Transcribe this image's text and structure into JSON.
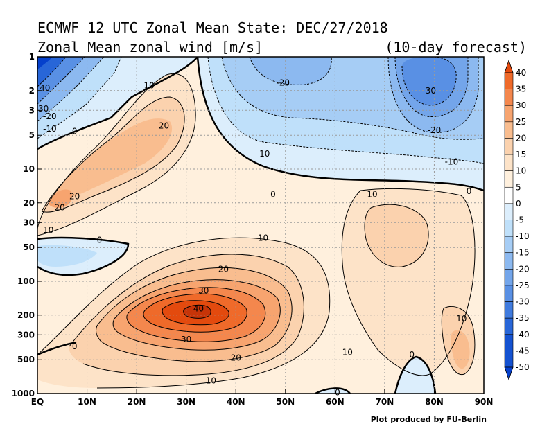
{
  "header": {
    "title": "ECMWF 12 UTC Zonal Mean State: DEC/27/2018",
    "subtitle": "Zonal Mean zonal wind [m/s]",
    "forecast": "(10-day forecast)"
  },
  "credit": "Plot produced by FU-Berlin",
  "chart_data": {
    "type": "heatmap",
    "title": "ECMWF 12 UTC Zonal Mean State: DEC/27/2018",
    "variable": "Zonal Mean zonal wind",
    "unit": "m/s",
    "x_tick_labels": [
      "EQ",
      "10N",
      "20N",
      "30N",
      "40N",
      "50N",
      "60N",
      "70N",
      "80N",
      "90N"
    ],
    "x_range": [
      0,
      90
    ],
    "y_tick_labels": [
      "1",
      "2",
      "3",
      "5",
      "10",
      "20",
      "30",
      "50",
      "100",
      "200",
      "300",
      "500",
      "1000"
    ],
    "y_tick_values": [
      1,
      2,
      3,
      5,
      10,
      20,
      30,
      50,
      100,
      200,
      300,
      500,
      1000
    ],
    "y_range": [
      1,
      1000
    ],
    "y_scale": "log",
    "y_inverted": true,
    "grid": true,
    "colorbar": {
      "placement": "right",
      "labels": [
        "40",
        "35",
        "30",
        "25",
        "20",
        "15",
        "10",
        "5",
        "0",
        "-5",
        "-10",
        "-15",
        "-20",
        "-25",
        "-30",
        "-35",
        "-40",
        "-45",
        "-50"
      ],
      "colors": [
        "#e34a0e",
        "#ef6a2a",
        "#f4874d",
        "#f7a46f",
        "#f9bd8f",
        "#fbd2ae",
        "#fde3c8",
        "#fff0dd",
        "#ffffff",
        "#dceefc",
        "#bfe0fa",
        "#a6cdf5",
        "#8cb9f0",
        "#73a5ea",
        "#5990e4",
        "#407bde",
        "#2866d8",
        "#1452d1",
        "#0540cc"
      ]
    },
    "contour_labels": [
      {
        "text": "40",
        "lat": 1.5,
        "p": 1.9
      },
      {
        "text": "30",
        "lat": 1.2,
        "p": 2.9
      },
      {
        "text": "-20",
        "lat": 2.5,
        "p": 3.4
      },
      {
        "text": "-10",
        "lat": 2.5,
        "p": 4.4
      },
      {
        "text": "0",
        "lat": 7.5,
        "p": 4.6
      },
      {
        "text": "10",
        "lat": 22.5,
        "p": 1.8
      },
      {
        "text": "20",
        "lat": 25.5,
        "p": 4.1
      },
      {
        "text": "20",
        "lat": 7.5,
        "p": 17.5
      },
      {
        "text": "20",
        "lat": 4.5,
        "p": 22
      },
      {
        "text": "10",
        "lat": 2.2,
        "p": 35
      },
      {
        "text": "0",
        "lat": 12.5,
        "p": 43
      },
      {
        "text": "-20",
        "lat": 49.5,
        "p": 1.7
      },
      {
        "text": "-10",
        "lat": 45.5,
        "p": 7.3
      },
      {
        "text": "-30",
        "lat": 79.0,
        "p": 2.0
      },
      {
        "text": "-20",
        "lat": 80.0,
        "p": 4.5
      },
      {
        "text": "-10",
        "lat": 83.5,
        "p": 8.6
      },
      {
        "text": "0",
        "lat": 47.5,
        "p": 16.8
      },
      {
        "text": "0",
        "lat": 87.0,
        "p": 15.8
      },
      {
        "text": "10",
        "lat": 67.5,
        "p": 16.8
      },
      {
        "text": "10",
        "lat": 45.5,
        "p": 41
      },
      {
        "text": "20",
        "lat": 37.5,
        "p": 78
      },
      {
        "text": "30",
        "lat": 33.5,
        "p": 121
      },
      {
        "text": "40",
        "lat": 32.5,
        "p": 175
      },
      {
        "text": "30",
        "lat": 30.0,
        "p": 330
      },
      {
        "text": "20",
        "lat": 40.0,
        "p": 480
      },
      {
        "text": "10",
        "lat": 35.0,
        "p": 770
      },
      {
        "text": "10",
        "lat": 62.5,
        "p": 430
      },
      {
        "text": "10",
        "lat": 85.5,
        "p": 215
      },
      {
        "text": "0",
        "lat": 7.5,
        "p": 380
      },
      {
        "text": "0",
        "lat": 75.5,
        "p": 450
      },
      {
        "text": "0",
        "lat": 60.5,
        "p": 980
      }
    ],
    "notes_on_structure": {
      "max_tropospheric_jet": {
        "lat": 32,
        "p": 200,
        "value": 40
      },
      "min_stratospheric_polar": {
        "lat": 78,
        "p": 2,
        "value": -30
      },
      "min_equatorial_upper": {
        "lat": 0,
        "p": 1,
        "value": -50
      }
    }
  }
}
